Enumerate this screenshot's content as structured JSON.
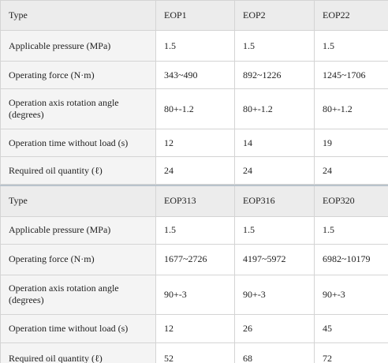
{
  "tables": [
    {
      "header": [
        "Type",
        "EOP1",
        "EOP2",
        "EOP22"
      ],
      "rows": [
        [
          "Applicable pressure (MPa)",
          "1.5",
          "1.5",
          "1.5"
        ],
        [
          "Operating force (N·m)",
          "343~490",
          "892~1226",
          "1245~1706"
        ],
        [
          "Operation axis rotation angle (degrees)",
          "80+-1.2",
          "80+-1.2",
          "80+-1.2"
        ],
        [
          "Operation time without load (s)",
          "12",
          "14",
          "19"
        ],
        [
          "Required oil quantity (ℓ)",
          "24",
          "24",
          "24"
        ]
      ]
    },
    {
      "header": [
        "Type",
        "EOP313",
        "EOP316",
        "EOP320"
      ],
      "rows": [
        [
          "Applicable pressure (MPa)",
          "1.5",
          "1.5",
          "1.5"
        ],
        [
          "Operating force (N·m)",
          "1677~2726",
          "4197~5972",
          "6982~10179"
        ],
        [
          "Operation axis rotation angle (degrees)",
          "90+-3",
          "90+-3",
          "90+-3"
        ],
        [
          "Operation time without load (s)",
          "12",
          "26",
          "45"
        ],
        [
          "Required oil quantity (ℓ)",
          "52",
          "68",
          "72"
        ]
      ]
    }
  ]
}
